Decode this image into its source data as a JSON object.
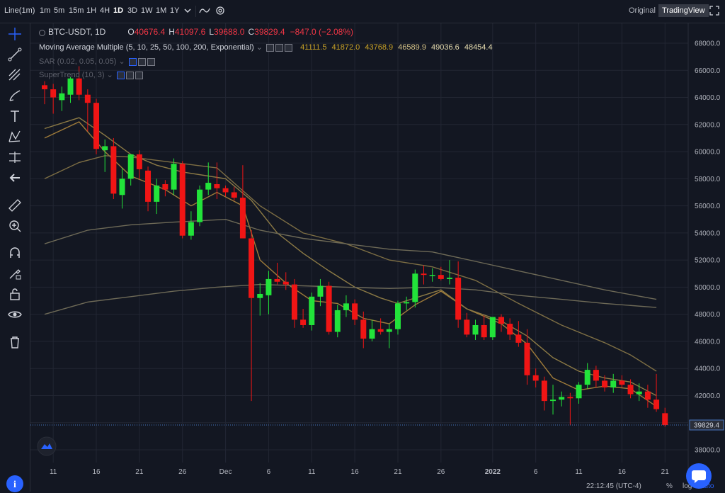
{
  "toolbar": {
    "interval_label": "Line(1m)",
    "timeframes": [
      "1m",
      "5m",
      "15m",
      "1H",
      "4H",
      "1D",
      "3D",
      "1W",
      "1M",
      "1Y"
    ],
    "active_timeframe": "1D",
    "original_label": "Original",
    "tradingview_label": "TradingView"
  },
  "legend": {
    "symbol": "BTC-USDT, 1D",
    "o_label": "O",
    "o_value": "40676.4",
    "h_label": "H",
    "h_value": "41097.6",
    "l_label": "L",
    "l_value": "39688.0",
    "c_label": "C",
    "c_value": "39829.4",
    "change": "−847.0 (−2.08%)",
    "ma_name": "Moving Average Multiple (5, 10, 25, 50, 100, 200, Exponential)",
    "ma_values": [
      "41111.5",
      "41872.0",
      "43768.9",
      "46589.9",
      "49036.6",
      "48454.4"
    ],
    "sar_name": "SAR (0.02, 0.05, 0.05)",
    "st_name": "SuperTrend (10, 3)"
  },
  "statusbar": {
    "time": "22:12:45 (UTC-4)",
    "percent": "%",
    "log": "log",
    "auto": "auto"
  },
  "chart_data": {
    "type": "candlestick",
    "symbol": "BTC-USDT",
    "interval": "1D",
    "ylim": [
      37000,
      69500
    ],
    "y_ticks": [
      38000,
      40000,
      42000,
      44000,
      46000,
      48000,
      50000,
      52000,
      54000,
      56000,
      58000,
      60000,
      62000,
      64000,
      66000,
      68000
    ],
    "x_tick_labels": [
      {
        "day": 1,
        "label": "11"
      },
      {
        "day": 6,
        "label": "16"
      },
      {
        "day": 11,
        "label": "21"
      },
      {
        "day": 16,
        "label": "26"
      },
      {
        "day": 21,
        "label": "Dec"
      },
      {
        "day": 26,
        "label": "6"
      },
      {
        "day": 31,
        "label": "11"
      },
      {
        "day": 36,
        "label": "16"
      },
      {
        "day": 41,
        "label": "21"
      },
      {
        "day": 46,
        "label": "26"
      },
      {
        "day": 52,
        "label": "2022"
      },
      {
        "day": 57,
        "label": "6"
      },
      {
        "day": 62,
        "label": "11"
      },
      {
        "day": 67,
        "label": "16"
      },
      {
        "day": 72,
        "label": "21"
      }
    ],
    "last_price_label": "39829.4",
    "last_price": 39829.4,
    "candles": [
      {
        "o": 64900,
        "h": 65200,
        "l": 63500,
        "c": 64600
      },
      {
        "o": 64600,
        "h": 65000,
        "l": 62800,
        "c": 64000
      },
      {
        "o": 63800,
        "h": 64800,
        "l": 63000,
        "c": 64300
      },
      {
        "o": 64200,
        "h": 65500,
        "l": 63600,
        "c": 65400
      },
      {
        "o": 65400,
        "h": 66300,
        "l": 63800,
        "c": 64200
      },
      {
        "o": 64200,
        "h": 64600,
        "l": 61500,
        "c": 63600
      },
      {
        "o": 63600,
        "h": 63900,
        "l": 59800,
        "c": 60200
      },
      {
        "o": 60100,
        "h": 60900,
        "l": 58500,
        "c": 60400
      },
      {
        "o": 60400,
        "h": 61000,
        "l": 56500,
        "c": 56900
      },
      {
        "o": 56800,
        "h": 58800,
        "l": 55800,
        "c": 58000
      },
      {
        "o": 58000,
        "h": 59700,
        "l": 57500,
        "c": 59800
      },
      {
        "o": 59800,
        "h": 60100,
        "l": 58000,
        "c": 58700
      },
      {
        "o": 58600,
        "h": 58900,
        "l": 55600,
        "c": 56300
      },
      {
        "o": 56300,
        "h": 58000,
        "l": 55400,
        "c": 57500
      },
      {
        "o": 57600,
        "h": 57900,
        "l": 56700,
        "c": 57200
      },
      {
        "o": 57200,
        "h": 59500,
        "l": 56800,
        "c": 59100
      },
      {
        "o": 59100,
        "h": 59300,
        "l": 53600,
        "c": 53800
      },
      {
        "o": 53800,
        "h": 55600,
        "l": 53500,
        "c": 54800
      },
      {
        "o": 54800,
        "h": 57500,
        "l": 54500,
        "c": 57200
      },
      {
        "o": 57200,
        "h": 59200,
        "l": 56800,
        "c": 57700
      },
      {
        "o": 57600,
        "h": 59200,
        "l": 56500,
        "c": 57300
      },
      {
        "o": 57300,
        "h": 57500,
        "l": 56700,
        "c": 57000
      },
      {
        "o": 57000,
        "h": 57400,
        "l": 56400,
        "c": 56600
      },
      {
        "o": 56600,
        "h": 59000,
        "l": 53800,
        "c": 53600
      },
      {
        "o": 53600,
        "h": 54200,
        "l": 41600,
        "c": 49200
      },
      {
        "o": 49200,
        "h": 50300,
        "l": 47900,
        "c": 49500
      },
      {
        "o": 49400,
        "h": 51200,
        "l": 48000,
        "c": 50600
      },
      {
        "o": 50600,
        "h": 51800,
        "l": 50200,
        "c": 50400
      },
      {
        "o": 50400,
        "h": 51100,
        "l": 49800,
        "c": 50200
      },
      {
        "o": 50200,
        "h": 50600,
        "l": 47000,
        "c": 47600
      },
      {
        "o": 47600,
        "h": 48400,
        "l": 47000,
        "c": 47200
      },
      {
        "o": 47200,
        "h": 49600,
        "l": 46800,
        "c": 49300
      },
      {
        "o": 49300,
        "h": 50600,
        "l": 48600,
        "c": 50100
      },
      {
        "o": 50100,
        "h": 50400,
        "l": 46500,
        "c": 46700
      },
      {
        "o": 46700,
        "h": 48700,
        "l": 46300,
        "c": 48300
      },
      {
        "o": 48300,
        "h": 49400,
        "l": 47800,
        "c": 48800
      },
      {
        "o": 48800,
        "h": 49100,
        "l": 47200,
        "c": 47600
      },
      {
        "o": 47600,
        "h": 48200,
        "l": 45500,
        "c": 46200
      },
      {
        "o": 46200,
        "h": 47600,
        "l": 46000,
        "c": 46900
      },
      {
        "o": 46900,
        "h": 47700,
        "l": 46500,
        "c": 46700
      },
      {
        "o": 46700,
        "h": 47300,
        "l": 45500,
        "c": 46900
      },
      {
        "o": 46900,
        "h": 49000,
        "l": 46500,
        "c": 48800
      },
      {
        "o": 48800,
        "h": 49300,
        "l": 48300,
        "c": 48900
      },
      {
        "o": 48900,
        "h": 51300,
        "l": 48500,
        "c": 51000
      },
      {
        "o": 51000,
        "h": 51600,
        "l": 50200,
        "c": 50900
      },
      {
        "o": 50900,
        "h": 51400,
        "l": 50400,
        "c": 50900
      },
      {
        "o": 50900,
        "h": 51500,
        "l": 50500,
        "c": 50600
      },
      {
        "o": 50600,
        "h": 52000,
        "l": 50200,
        "c": 50700
      },
      {
        "o": 50700,
        "h": 51900,
        "l": 47000,
        "c": 47600
      },
      {
        "o": 47600,
        "h": 48100,
        "l": 46300,
        "c": 46500
      },
      {
        "o": 46500,
        "h": 47600,
        "l": 46100,
        "c": 47200
      },
      {
        "o": 47200,
        "h": 47900,
        "l": 46100,
        "c": 46300
      },
      {
        "o": 46300,
        "h": 47800,
        "l": 46100,
        "c": 47800
      },
      {
        "o": 47800,
        "h": 48000,
        "l": 46700,
        "c": 47300
      },
      {
        "o": 47300,
        "h": 47700,
        "l": 46100,
        "c": 46500
      },
      {
        "o": 46500,
        "h": 47500,
        "l": 45600,
        "c": 45900
      },
      {
        "o": 45900,
        "h": 46900,
        "l": 42800,
        "c": 43500
      },
      {
        "o": 43500,
        "h": 44000,
        "l": 42600,
        "c": 43100
      },
      {
        "o": 43100,
        "h": 43400,
        "l": 40900,
        "c": 41600
      },
      {
        "o": 41600,
        "h": 42800,
        "l": 40600,
        "c": 41700
      },
      {
        "o": 41700,
        "h": 42300,
        "l": 41200,
        "c": 41900
      },
      {
        "o": 41900,
        "h": 42200,
        "l": 39800,
        "c": 41800
      },
      {
        "o": 41800,
        "h": 43000,
        "l": 41400,
        "c": 42800
      },
      {
        "o": 42800,
        "h": 44400,
        "l": 42500,
        "c": 43900
      },
      {
        "o": 43900,
        "h": 44200,
        "l": 42600,
        "c": 43100
      },
      {
        "o": 43100,
        "h": 43500,
        "l": 42300,
        "c": 42600
      },
      {
        "o": 42600,
        "h": 43600,
        "l": 42200,
        "c": 43100
      },
      {
        "o": 43100,
        "h": 43500,
        "l": 42600,
        "c": 42800
      },
      {
        "o": 42800,
        "h": 43200,
        "l": 41800,
        "c": 42100
      },
      {
        "o": 42100,
        "h": 42900,
        "l": 41600,
        "c": 42300
      },
      {
        "o": 42300,
        "h": 42800,
        "l": 41100,
        "c": 41700
      },
      {
        "o": 41700,
        "h": 43600,
        "l": 40800,
        "c": 41000
      },
      {
        "o": 40700,
        "h": 41100,
        "l": 39700,
        "c": 39830
      }
    ],
    "ma_lines": [
      {
        "name": "MA 10",
        "color": "#a07c3a",
        "points": [
          [
            0,
            61000
          ],
          [
            4,
            62200
          ],
          [
            7,
            60000
          ],
          [
            10,
            58200
          ],
          [
            14,
            57200
          ],
          [
            17,
            56000
          ],
          [
            20,
            57000
          ],
          [
            23,
            56000
          ],
          [
            25,
            52000
          ],
          [
            28,
            50300
          ],
          [
            31,
            49000
          ],
          [
            34,
            48800
          ],
          [
            37,
            47700
          ],
          [
            40,
            47300
          ],
          [
            43,
            48700
          ],
          [
            46,
            49700
          ],
          [
            49,
            48400
          ],
          [
            53,
            47300
          ],
          [
            56,
            45800
          ],
          [
            59,
            43300
          ],
          [
            62,
            42400
          ],
          [
            65,
            42700
          ],
          [
            68,
            42500
          ],
          [
            71,
            41200
          ]
        ]
      },
      {
        "name": "MA 25",
        "color": "#8c7a45",
        "points": [
          [
            0,
            61700
          ],
          [
            4,
            62500
          ],
          [
            7,
            61200
          ],
          [
            10,
            59800
          ],
          [
            13,
            59000
          ],
          [
            16,
            58500
          ],
          [
            19,
            58200
          ],
          [
            21,
            58000
          ],
          [
            24,
            56400
          ],
          [
            27,
            54000
          ],
          [
            30,
            52500
          ],
          [
            33,
            51200
          ],
          [
            36,
            50000
          ],
          [
            39,
            49200
          ],
          [
            41,
            48800
          ],
          [
            43,
            49200
          ],
          [
            46,
            49800
          ],
          [
            49,
            48400
          ],
          [
            53,
            47500
          ],
          [
            56,
            46400
          ],
          [
            59,
            44800
          ],
          [
            62,
            43800
          ],
          [
            65,
            43300
          ],
          [
            68,
            43000
          ],
          [
            71,
            42000
          ]
        ]
      },
      {
        "name": "MA 50",
        "color": "#7d6e44",
        "points": [
          [
            0,
            58000
          ],
          [
            4,
            59200
          ],
          [
            7,
            59700
          ],
          [
            10,
            59600
          ],
          [
            15,
            59200
          ],
          [
            20,
            58800
          ],
          [
            25,
            56000
          ],
          [
            30,
            54000
          ],
          [
            35,
            53200
          ],
          [
            40,
            52000
          ],
          [
            45,
            51500
          ],
          [
            50,
            50500
          ],
          [
            55,
            48800
          ],
          [
            60,
            47200
          ],
          [
            65,
            45900
          ],
          [
            68,
            45000
          ],
          [
            71,
            43800
          ]
        ]
      },
      {
        "name": "MA 100",
        "color": "#6e6a57",
        "points": [
          [
            0,
            53200
          ],
          [
            5,
            54200
          ],
          [
            10,
            54600
          ],
          [
            15,
            54800
          ],
          [
            21,
            55000
          ],
          [
            25,
            54200
          ],
          [
            30,
            53600
          ],
          [
            35,
            53200
          ],
          [
            40,
            52800
          ],
          [
            45,
            52600
          ],
          [
            50,
            51900
          ],
          [
            55,
            51200
          ],
          [
            60,
            50500
          ],
          [
            65,
            49800
          ],
          [
            71,
            49100
          ]
        ]
      },
      {
        "name": "MA 200",
        "color": "#6e6a57",
        "points": [
          [
            0,
            48000
          ],
          [
            5,
            48900
          ],
          [
            10,
            49300
          ],
          [
            15,
            49700
          ],
          [
            20,
            50000
          ],
          [
            25,
            50200
          ],
          [
            30,
            50100
          ],
          [
            35,
            50000
          ],
          [
            40,
            49900
          ],
          [
            45,
            50000
          ],
          [
            50,
            49800
          ],
          [
            55,
            49400
          ],
          [
            60,
            49100
          ],
          [
            65,
            48800
          ],
          [
            71,
            48500
          ]
        ]
      }
    ]
  }
}
